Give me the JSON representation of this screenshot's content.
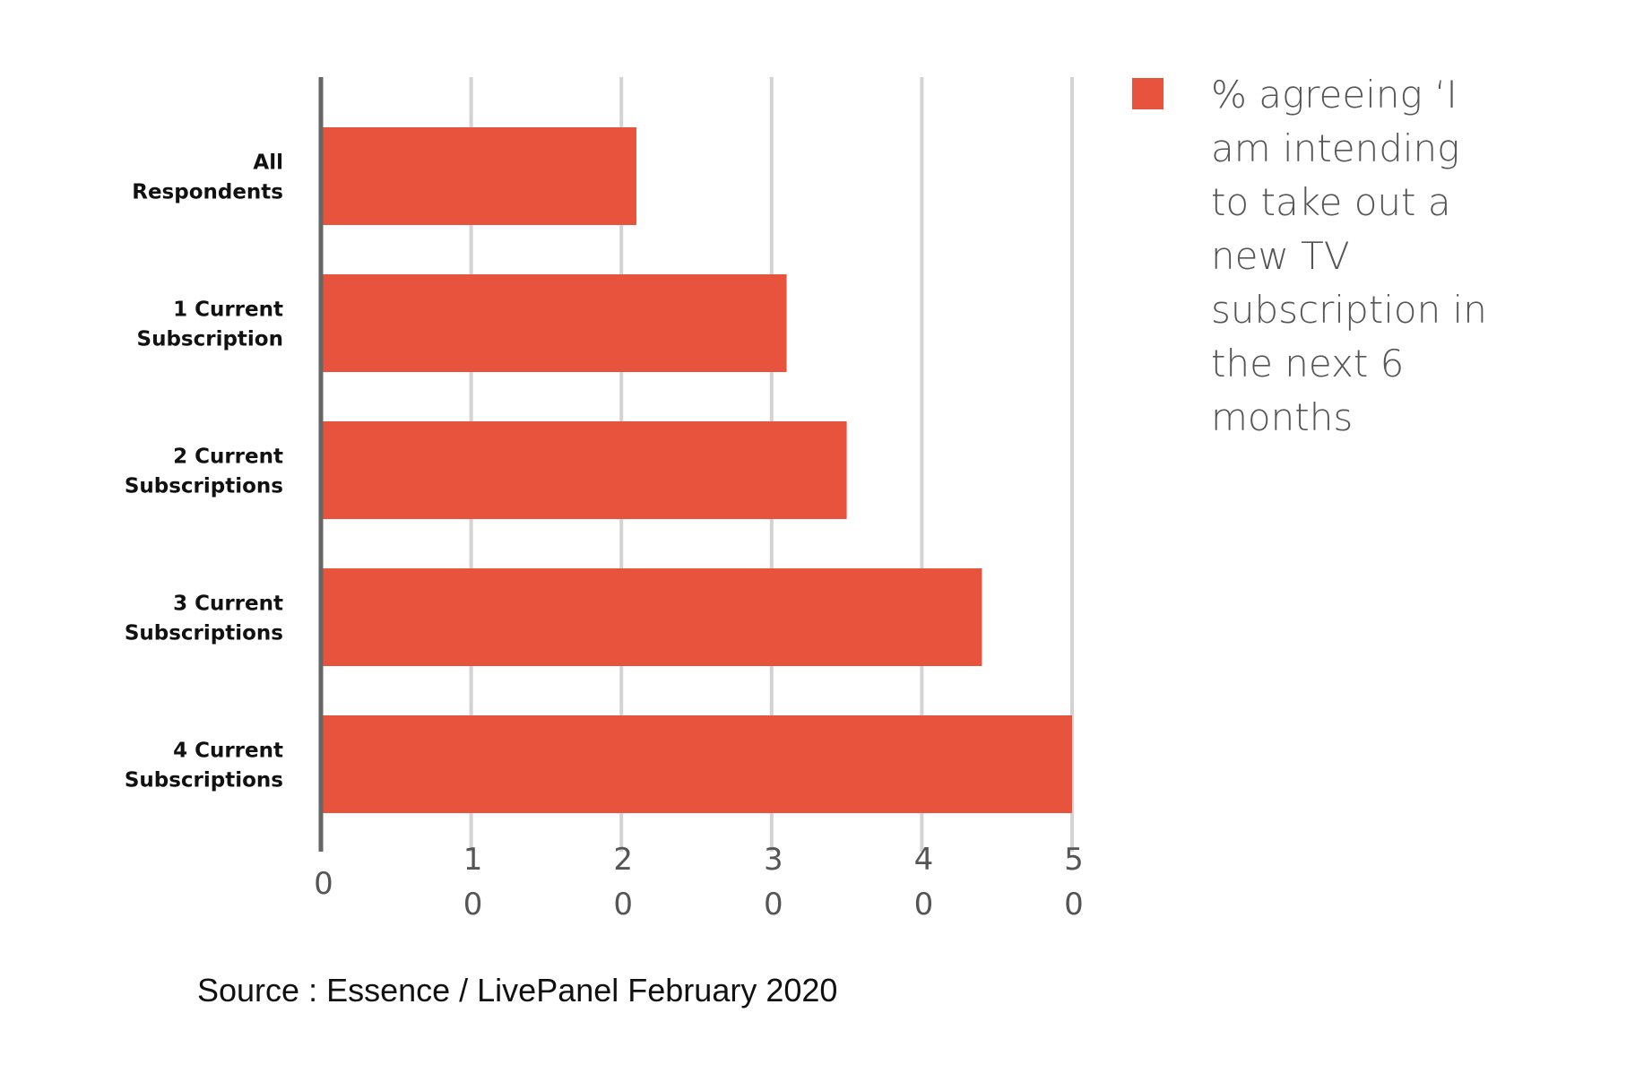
{
  "chart_data": {
    "type": "bar",
    "orientation": "horizontal",
    "categories": [
      [
        "All",
        "Respondents"
      ],
      [
        "1 Current",
        "Subscription"
      ],
      [
        "2 Current",
        "Subscriptions"
      ],
      [
        "3 Current",
        "Subscriptions"
      ],
      [
        "4 Current",
        "Subscriptions"
      ]
    ],
    "series": [
      {
        "name": "% agreeing ‘I am intending to take out a new TV subscription in the next 6 months",
        "values": [
          21,
          31,
          35,
          44,
          50
        ],
        "color": "#E8533D"
      }
    ],
    "xticks": [
      0,
      10,
      20,
      30,
      40,
      50
    ],
    "xlim": [
      0,
      50
    ],
    "grid": true,
    "legend_position": "right"
  },
  "source": "Source : Essence / LivePanel February 2020"
}
